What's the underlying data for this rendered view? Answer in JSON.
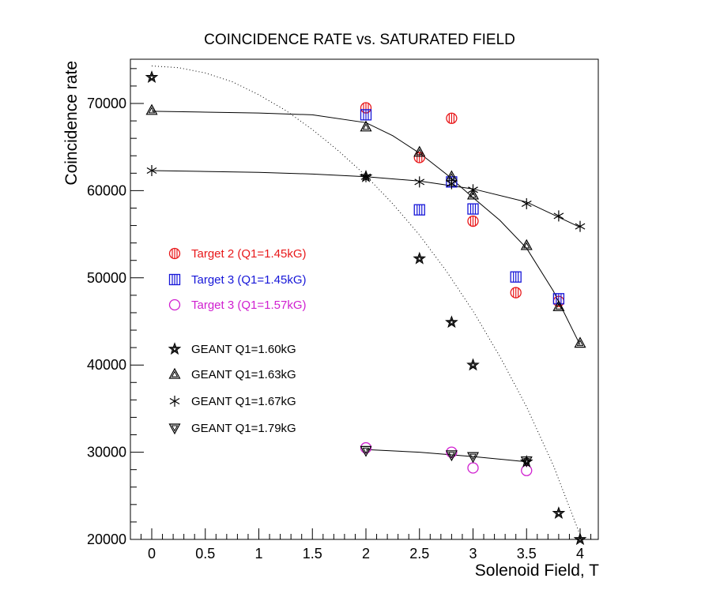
{
  "chart_data": {
    "type": "scatter",
    "title": "COINCIDENCE RATE vs. SATURATED FIELD",
    "xlabel": "Solenoid Field, T",
    "ylabel": "Coincidence rate",
    "xlim": [
      -0.2,
      4.2
    ],
    "ylim": [
      20000,
      74000
    ],
    "x_ticks": [
      0,
      0.5,
      1,
      1.5,
      2,
      2.5,
      3,
      3.5,
      4
    ],
    "x_tick_labels": [
      "0",
      "0.5",
      "1",
      "1.5",
      "2",
      "2.5",
      "3",
      "3.5",
      "4"
    ],
    "y_ticks": [
      20000,
      30000,
      40000,
      50000,
      60000,
      70000
    ],
    "y_tick_labels": [
      "20000",
      "30000",
      "40000",
      "50000",
      "60000",
      "70000"
    ],
    "grid": false,
    "legend_position": "left, middle",
    "series": [
      {
        "name": "Target 2 (Q1=1.45kG)",
        "marker": "circle-striped",
        "color": "#e8181a",
        "x": [
          2,
          2.5,
          2.8,
          3,
          3.4,
          3.8
        ],
        "y": [
          69500,
          63800,
          68300,
          56500,
          48300,
          47300
        ]
      },
      {
        "name": "Target 3 (Q1=1.45kG)",
        "marker": "square-striped",
        "color": "#1616d8",
        "x": [
          2,
          2.5,
          2.8,
          3,
          3.4,
          3.8
        ],
        "y": [
          68700,
          57800,
          61000,
          57900,
          50100,
          47600
        ]
      },
      {
        "name": "Target 3 (Q1=1.57kG)",
        "marker": "circle-open",
        "color": "#d020d0",
        "x": [
          2,
          2.8,
          3,
          3.5
        ],
        "y": [
          30500,
          30000,
          28200,
          27900
        ]
      },
      {
        "name": "GEANT Q1=1.60kG",
        "marker": "star",
        "color": "#000000",
        "x": [
          0,
          2,
          2.5,
          2.8,
          3,
          3.5,
          3.8,
          4
        ],
        "y": [
          73000,
          61600,
          52200,
          44900,
          40000,
          28900,
          23000,
          20000
        ]
      },
      {
        "name": "GEANT Q1=1.63kG",
        "marker": "triangle-up",
        "color": "#000000",
        "x": [
          0,
          2,
          2.5,
          2.8,
          3,
          3.5,
          3.8,
          4
        ],
        "y": [
          69200,
          67300,
          64400,
          61600,
          59500,
          53700,
          46700,
          42500
        ]
      },
      {
        "name": "GEANT Q1=1.67kG",
        "marker": "asterisk",
        "color": "#000000",
        "x": [
          0,
          2,
          2.5,
          2.8,
          3,
          3.5,
          3.8,
          4
        ],
        "y": [
          62300,
          61600,
          61000,
          60800,
          60100,
          58500,
          57100,
          55900
        ]
      },
      {
        "name": "GEANT Q1=1.79kG",
        "marker": "triangle-down",
        "color": "#000000",
        "x": [
          2,
          2.8,
          3,
          3.5
        ],
        "y": [
          30200,
          29700,
          29500,
          29000
        ]
      }
    ],
    "curves": [
      {
        "style": "solid",
        "x": [
          0,
          0.5,
          1,
          1.5,
          2,
          2.25,
          2.5,
          2.75,
          3,
          3.25,
          3.5,
          3.75,
          4
        ],
        "y": [
          69100,
          69000,
          68900,
          68700,
          67800,
          66300,
          64300,
          61900,
          59200,
          56600,
          53400,
          48500,
          42300
        ]
      },
      {
        "style": "solid",
        "x": [
          0,
          0.5,
          1,
          1.5,
          2,
          2.5,
          3,
          3.5,
          4
        ],
        "y": [
          62300,
          62200,
          62100,
          61900,
          61600,
          61100,
          60200,
          58700,
          55800
        ]
      },
      {
        "style": "solid",
        "x": [
          2,
          2.5,
          3,
          3.5
        ],
        "y": [
          30300,
          30000,
          29500,
          28900
        ]
      },
      {
        "style": "dotted",
        "x": [
          0,
          0.25,
          0.5,
          0.75,
          1,
          1.25,
          1.5,
          1.75,
          2,
          2.25,
          2.5,
          2.75,
          3,
          3.25,
          3.5,
          3.75,
          4
        ],
        "y": [
          74300,
          74100,
          73500,
          72500,
          71000,
          69200,
          67000,
          64500,
          61700,
          58500,
          54900,
          50800,
          46200,
          41000,
          35200,
          28500,
          20500
        ]
      }
    ]
  }
}
